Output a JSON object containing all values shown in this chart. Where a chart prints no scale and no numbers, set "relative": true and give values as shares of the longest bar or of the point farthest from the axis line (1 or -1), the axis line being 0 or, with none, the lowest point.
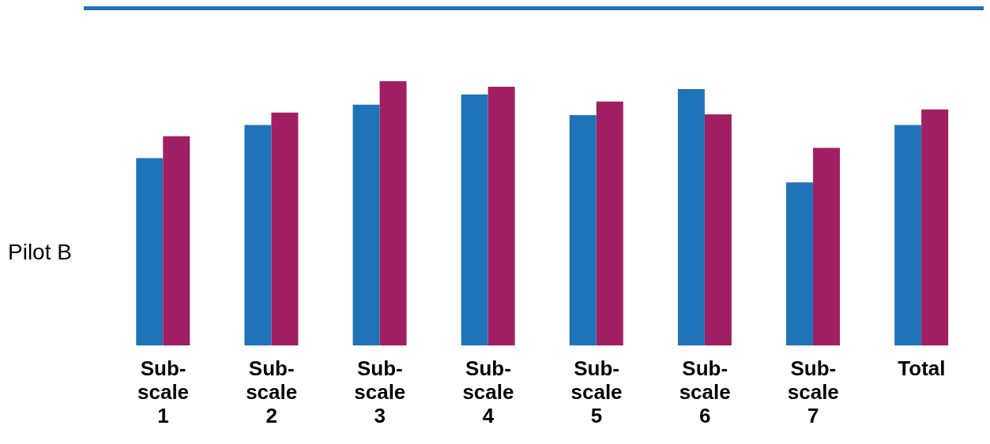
{
  "chart_data": {
    "type": "bar",
    "relative": true,
    "ylabel": "Pilot B",
    "categories": [
      "Sub-scale 1",
      "Sub-scale 2",
      "Sub-scale 3",
      "Sub-scale 4",
      "Sub-scale 5",
      "Sub-scale 6",
      "Sub-scale 7",
      "Total"
    ],
    "series": [
      {
        "color": "#1f73b9",
        "values": [
          0.709,
          0.834,
          0.911,
          0.95,
          0.872,
          0.97,
          0.617,
          0.834
        ]
      },
      {
        "color": "#a01f62",
        "values": [
          0.792,
          0.881,
          1.0,
          0.979,
          0.923,
          0.875,
          0.748,
          0.893
        ]
      }
    ]
  }
}
